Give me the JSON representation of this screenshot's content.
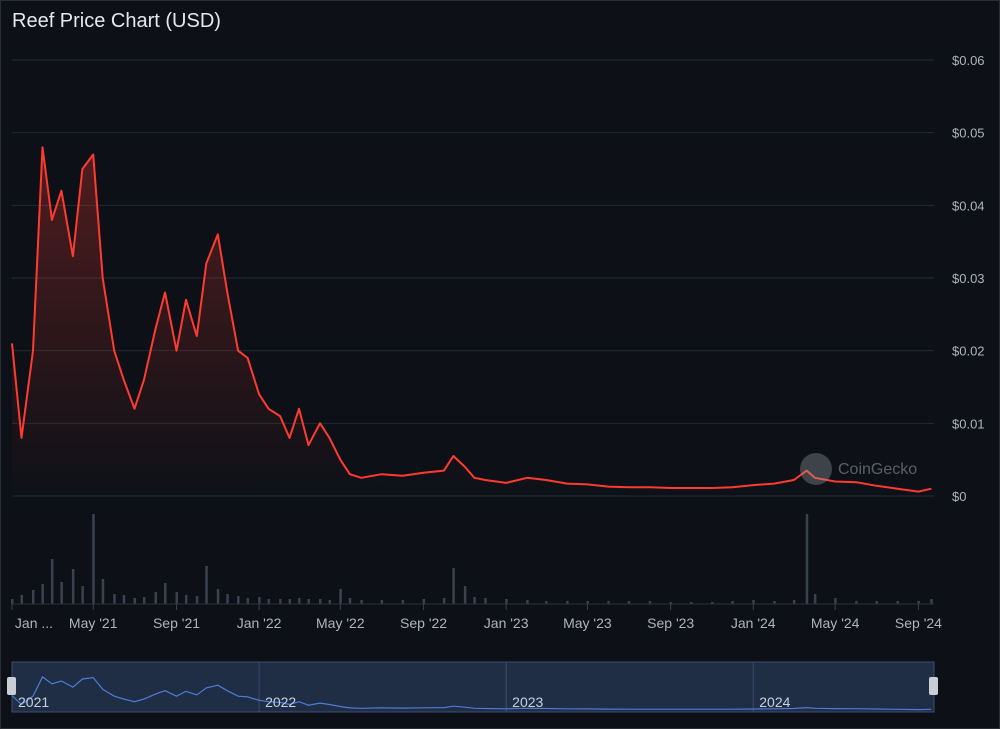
{
  "title": "Reef Price Chart (USD)",
  "watermark": "CoinGecko",
  "colors": {
    "line": "#ff3b30",
    "grid": "#222a33",
    "volume": "#3a4250",
    "navigator_line": "#4f7bd6",
    "navigator_bg": "#1f2d45"
  },
  "chart_data": {
    "type": "line",
    "title": "Reef Price Chart (USD)",
    "xlabel": "",
    "ylabel": "",
    "ylim": [
      0,
      0.06
    ],
    "yticks": [
      "$0",
      "$0.01",
      "$0.02",
      "$0.03",
      "$0.04",
      "$0.05",
      "$0.06"
    ],
    "xticks": [
      "Jan ...",
      "May '21",
      "Sep '21",
      "Jan '22",
      "May '22",
      "Sep '22",
      "Jan '23",
      "May '23",
      "Sep '23",
      "Jan '24",
      "May '24",
      "Sep '24"
    ],
    "navigator_labels": [
      "2021",
      "2022",
      "2023",
      "2024"
    ],
    "grid": true,
    "x": [
      "2021-01-01",
      "2021-01-15",
      "2021-02-01",
      "2021-02-15",
      "2021-03-01",
      "2021-03-15",
      "2021-04-01",
      "2021-04-15",
      "2021-05-01",
      "2021-05-15",
      "2021-06-01",
      "2021-06-15",
      "2021-07-01",
      "2021-07-15",
      "2021-08-01",
      "2021-08-15",
      "2021-09-01",
      "2021-09-15",
      "2021-10-01",
      "2021-10-15",
      "2021-11-01",
      "2021-11-15",
      "2021-12-01",
      "2021-12-15",
      "2022-01-01",
      "2022-01-15",
      "2022-02-01",
      "2022-02-15",
      "2022-03-01",
      "2022-03-15",
      "2022-04-01",
      "2022-04-15",
      "2022-05-01",
      "2022-05-15",
      "2022-06-01",
      "2022-07-01",
      "2022-08-01",
      "2022-09-01",
      "2022-10-01",
      "2022-10-15",
      "2022-11-01",
      "2022-11-15",
      "2022-12-01",
      "2023-01-01",
      "2023-02-01",
      "2023-03-01",
      "2023-04-01",
      "2023-05-01",
      "2023-06-01",
      "2023-07-01",
      "2023-08-01",
      "2023-09-01",
      "2023-10-01",
      "2023-11-01",
      "2023-12-01",
      "2024-01-01",
      "2024-02-01",
      "2024-03-01",
      "2024-03-20",
      "2024-04-01",
      "2024-05-01",
      "2024-06-01",
      "2024-07-01",
      "2024-08-01",
      "2024-09-01",
      "2024-09-20"
    ],
    "series": [
      {
        "values": [
          0.021,
          0.008,
          0.02,
          0.048,
          0.038,
          0.042,
          0.033,
          0.045,
          0.047,
          0.03,
          0.02,
          0.016,
          0.012,
          0.016,
          0.023,
          0.028,
          0.02,
          0.027,
          0.022,
          0.032,
          0.036,
          0.028,
          0.02,
          0.019,
          0.014,
          0.012,
          0.011,
          0.008,
          0.012,
          0.007,
          0.01,
          0.008,
          0.005,
          0.003,
          0.0025,
          0.003,
          0.0028,
          0.0032,
          0.0035,
          0.0055,
          0.004,
          0.0025,
          0.0022,
          0.0018,
          0.0025,
          0.0022,
          0.0017,
          0.0016,
          0.0013,
          0.0012,
          0.0012,
          0.0011,
          0.0011,
          0.0011,
          0.0012,
          0.0015,
          0.0017,
          0.0022,
          0.0035,
          0.0025,
          0.002,
          0.0019,
          0.0014,
          0.001,
          0.0006,
          0.001
        ]
      }
    ],
    "volume": [
      0.5,
      0.9,
      1.4,
      2.0,
      4.5,
      2.2,
      3.5,
      1.8,
      9.0,
      2.5,
      1.0,
      0.9,
      0.6,
      0.7,
      1.2,
      2.1,
      1.2,
      0.9,
      0.8,
      3.8,
      1.5,
      1.0,
      0.8,
      0.6,
      0.7,
      0.5,
      0.5,
      0.5,
      0.6,
      0.5,
      0.5,
      0.4,
      1.5,
      0.6,
      0.4,
      0.4,
      0.4,
      0.5,
      0.6,
      3.6,
      1.8,
      0.7,
      0.6,
      0.5,
      0.4,
      0.3,
      0.3,
      0.3,
      0.3,
      0.3,
      0.3,
      0.2,
      0.2,
      0.2,
      0.3,
      0.4,
      0.3,
      0.4,
      9.0,
      1.0,
      0.6,
      0.3,
      0.3,
      0.3,
      0.3,
      0.5
    ]
  }
}
